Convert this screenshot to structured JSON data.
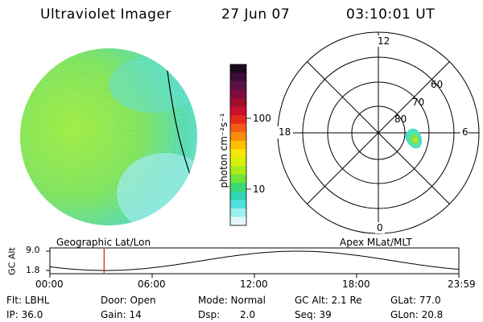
{
  "header": {
    "instrument": "Ultraviolet Imager",
    "date": "27 Jun 07",
    "time": "03:10:01 UT"
  },
  "colorbar": {
    "unit_label": "photon cm⁻²s⁻¹",
    "ticks": [
      "100",
      "10"
    ],
    "colors": [
      "#1a0a1e",
      "#3a0d3a",
      "#5a1046",
      "#7c0c3c",
      "#a00d2d",
      "#c8102a",
      "#e52a1c",
      "#f25b14",
      "#f78c0c",
      "#ffc000",
      "#f4e80a",
      "#d6f00a",
      "#a8ec1a",
      "#6ee43c",
      "#39d870",
      "#2fd4b0",
      "#4fe0e0",
      "#9ef0f0",
      "#e0f8f8"
    ]
  },
  "polar": {
    "mlt_labels": [
      "12",
      "18",
      "6",
      "0"
    ],
    "lat_labels": [
      "60",
      "70",
      "80"
    ]
  },
  "timeline": {
    "left_label": "Geographic Lat/Lon",
    "right_label": "Apex MLat/MLT",
    "yaxis_title": "GC Alt",
    "ytick_top": "9.0",
    "ytick_bottom": "1.8",
    "time_ticks": [
      "00:00",
      "06:00",
      "12:00",
      "18:00",
      "23:59"
    ],
    "current_fraction": 0.1324
  },
  "status": {
    "filter": "Flt: LBHL",
    "door": "Door: Open",
    "mode": "Mode: Normal",
    "gc_alt": "GC Alt: 2.1 Re",
    "glat": "GLat: 77.0",
    "ip": "IP: 36.0",
    "gain": "Gain: 14",
    "dsp_label": "Dsp:",
    "dsp_value": "2.0",
    "seq": "Seq: 39",
    "glon": "GLon: 20.8"
  }
}
